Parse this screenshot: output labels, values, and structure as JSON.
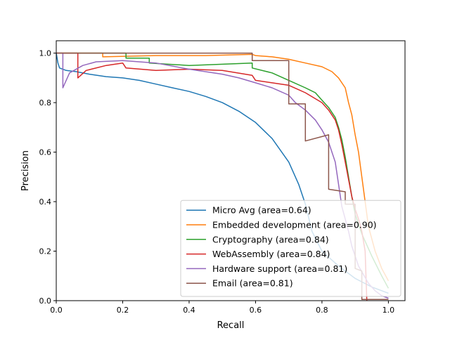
{
  "chart_data": {
    "type": "line",
    "title": "",
    "xlabel": "Recall",
    "ylabel": "Precision",
    "xlim": [
      0.0,
      1.05
    ],
    "ylim": [
      0.0,
      1.05
    ],
    "xticks": [
      "0.0",
      "0.2",
      "0.4",
      "0.6",
      "0.8",
      "1.0"
    ],
    "yticks": [
      "0.0",
      "0.2",
      "0.4",
      "0.6",
      "0.8",
      "1.0"
    ],
    "grid": false,
    "legend_position": "bottom-right",
    "series": [
      {
        "name": "Micro Avg (area=0.64)",
        "color": "#1f77b4",
        "points": [
          [
            0.0,
            1.0
          ],
          [
            0.005,
            0.96
          ],
          [
            0.01,
            0.94
          ],
          [
            0.03,
            0.93
          ],
          [
            0.06,
            0.925
          ],
          [
            0.1,
            0.915
          ],
          [
            0.15,
            0.905
          ],
          [
            0.2,
            0.9
          ],
          [
            0.25,
            0.89
          ],
          [
            0.3,
            0.875
          ],
          [
            0.35,
            0.86
          ],
          [
            0.4,
            0.845
          ],
          [
            0.45,
            0.825
          ],
          [
            0.5,
            0.8
          ],
          [
            0.55,
            0.765
          ],
          [
            0.6,
            0.72
          ],
          [
            0.65,
            0.655
          ],
          [
            0.7,
            0.56
          ],
          [
            0.73,
            0.47
          ],
          [
            0.75,
            0.39
          ],
          [
            0.77,
            0.28
          ],
          [
            0.8,
            0.2
          ],
          [
            0.85,
            0.14
          ],
          [
            0.9,
            0.09
          ],
          [
            0.95,
            0.055
          ],
          [
            1.0,
            0.03
          ]
        ]
      },
      {
        "name": "Embedded development (area=0.90)",
        "color": "#ff7f0e",
        "points": [
          [
            0.0,
            1.0
          ],
          [
            0.14,
            1.0
          ],
          [
            0.14,
            0.985
          ],
          [
            0.3,
            0.99
          ],
          [
            0.45,
            0.99
          ],
          [
            0.59,
            0.995
          ],
          [
            0.6,
            0.99
          ],
          [
            0.65,
            0.985
          ],
          [
            0.7,
            0.975
          ],
          [
            0.75,
            0.96
          ],
          [
            0.8,
            0.945
          ],
          [
            0.83,
            0.925
          ],
          [
            0.85,
            0.9
          ],
          [
            0.87,
            0.86
          ],
          [
            0.88,
            0.8
          ],
          [
            0.89,
            0.75
          ],
          [
            0.9,
            0.67
          ],
          [
            0.91,
            0.6
          ],
          [
            0.92,
            0.5
          ],
          [
            0.93,
            0.4
          ],
          [
            0.94,
            0.3
          ],
          [
            0.96,
            0.2
          ],
          [
            0.98,
            0.13
          ],
          [
            1.0,
            0.08
          ]
        ]
      },
      {
        "name": "Cryptography (area=0.84)",
        "color": "#2ca02c",
        "points": [
          [
            0.0,
            1.0
          ],
          [
            0.21,
            1.0
          ],
          [
            0.21,
            0.98
          ],
          [
            0.28,
            0.98
          ],
          [
            0.28,
            0.96
          ],
          [
            0.4,
            0.95
          ],
          [
            0.59,
            0.96
          ],
          [
            0.59,
            0.94
          ],
          [
            0.65,
            0.92
          ],
          [
            0.7,
            0.89
          ],
          [
            0.75,
            0.86
          ],
          [
            0.78,
            0.84
          ],
          [
            0.8,
            0.81
          ],
          [
            0.82,
            0.78
          ],
          [
            0.84,
            0.74
          ],
          [
            0.85,
            0.7
          ],
          [
            0.86,
            0.65
          ],
          [
            0.87,
            0.58
          ],
          [
            0.88,
            0.5
          ],
          [
            0.89,
            0.42
          ],
          [
            0.9,
            0.35
          ],
          [
            0.92,
            0.27
          ],
          [
            0.95,
            0.18
          ],
          [
            0.98,
            0.1
          ],
          [
            1.0,
            0.05
          ]
        ]
      },
      {
        "name": "WebAssembly (area=0.84)",
        "color": "#d62728",
        "points": [
          [
            0.0,
            1.0
          ],
          [
            0.065,
            1.0
          ],
          [
            0.065,
            0.9
          ],
          [
            0.09,
            0.93
          ],
          [
            0.15,
            0.95
          ],
          [
            0.2,
            0.96
          ],
          [
            0.21,
            0.94
          ],
          [
            0.3,
            0.93
          ],
          [
            0.4,
            0.935
          ],
          [
            0.5,
            0.93
          ],
          [
            0.59,
            0.91
          ],
          [
            0.6,
            0.89
          ],
          [
            0.65,
            0.88
          ],
          [
            0.7,
            0.87
          ],
          [
            0.75,
            0.84
          ],
          [
            0.8,
            0.8
          ],
          [
            0.82,
            0.77
          ],
          [
            0.84,
            0.73
          ],
          [
            0.85,
            0.69
          ],
          [
            0.86,
            0.63
          ],
          [
            0.87,
            0.56
          ],
          [
            0.88,
            0.49
          ],
          [
            0.89,
            0.42
          ],
          [
            0.9,
            0.37
          ],
          [
            0.91,
            0.33
          ],
          [
            0.92,
            0.28
          ],
          [
            0.93,
            0.2
          ],
          [
            0.935,
            0.0
          ]
        ]
      },
      {
        "name": "Hardware support (area=0.81)",
        "color": "#9467bd",
        "points": [
          [
            0.0,
            1.0
          ],
          [
            0.02,
            1.0
          ],
          [
            0.02,
            0.86
          ],
          [
            0.04,
            0.92
          ],
          [
            0.08,
            0.95
          ],
          [
            0.12,
            0.965
          ],
          [
            0.2,
            0.97
          ],
          [
            0.3,
            0.96
          ],
          [
            0.4,
            0.935
          ],
          [
            0.5,
            0.915
          ],
          [
            0.55,
            0.9
          ],
          [
            0.6,
            0.88
          ],
          [
            0.65,
            0.86
          ],
          [
            0.7,
            0.83
          ],
          [
            0.72,
            0.8
          ],
          [
            0.75,
            0.77
          ],
          [
            0.78,
            0.73
          ],
          [
            0.8,
            0.69
          ],
          [
            0.82,
            0.64
          ],
          [
            0.84,
            0.56
          ],
          [
            0.85,
            0.47
          ],
          [
            0.86,
            0.38
          ],
          [
            0.87,
            0.33
          ],
          [
            0.88,
            0.28
          ],
          [
            0.89,
            0.22
          ],
          [
            0.91,
            0.14
          ],
          [
            0.94,
            0.07
          ],
          [
            0.96,
            0.04
          ],
          [
            0.98,
            0.02
          ],
          [
            1.0,
            0.01
          ]
        ]
      },
      {
        "name": "Email (area=0.81)",
        "color": "#8c564b",
        "points": [
          [
            0.0,
            1.0
          ],
          [
            0.59,
            1.0
          ],
          [
            0.59,
            0.97
          ],
          [
            0.7,
            0.97
          ],
          [
            0.7,
            0.795
          ],
          [
            0.75,
            0.795
          ],
          [
            0.75,
            0.645
          ],
          [
            0.82,
            0.67
          ],
          [
            0.82,
            0.45
          ],
          [
            0.87,
            0.44
          ],
          [
            0.87,
            0.39
          ],
          [
            0.9,
            0.39
          ],
          [
            0.9,
            0.13
          ],
          [
            0.92,
            0.12
          ],
          [
            0.92,
            0.005
          ],
          [
            1.0,
            0.005
          ]
        ]
      }
    ]
  }
}
